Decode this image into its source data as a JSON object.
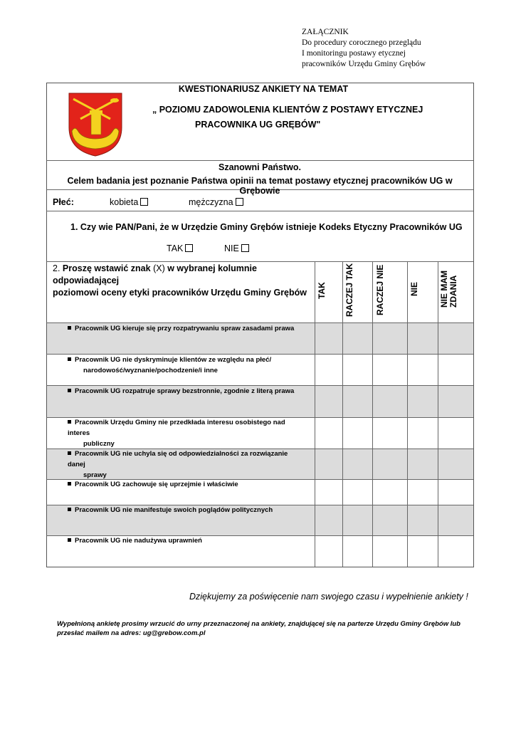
{
  "attachment": {
    "lines": [
      "ZAŁĄCZNIK",
      "Do procedury corocznego przeglądu",
      "I monitoringu postawy etycznej",
      "pracowników Urzędu Gminy Grębów"
    ]
  },
  "header": {
    "title1": "KWESTIONARIUSZ ANKIETY NA TEMAT",
    "title2": "„ POZIOMU ZADOWOLENIA KLIENTÓW Z POSTAWY ETYCZNEJ",
    "title3": "PRACOWNIKA UG GRĘBÓW\"",
    "crest_colors": {
      "field": "#e2231a",
      "charge": "#f4d21f"
    }
  },
  "intro": {
    "greeting": "Szanowni Państwo.",
    "text": "Celem badania jest poznanie Państwa opinii na temat postawy etycznej pracowników UG w Grębowie"
  },
  "gender": {
    "label": "Płeć:",
    "options": [
      "kobieta",
      "mężczyzna"
    ]
  },
  "q1": {
    "text": "1. Czy wie PAN/Pani, że w Urzędzie Gminy Grębów istnieje Kodeks Etyczny Pracowników UG",
    "options": [
      "TAK",
      "NIE"
    ]
  },
  "q2": {
    "num": "2.",
    "bold1": "Proszę wstawić znak",
    "x": "(X)",
    "bold2": "w wybranej kolumnie odpowiadającej",
    "line2": "poziomowi oceny etyki pracowników Urzędu Gminy Grębów",
    "columns": [
      "TAK",
      "RACZEJ TAK",
      "RACZEJ NIE",
      "NIE",
      "NIE MAM ZDANIA"
    ]
  },
  "items": [
    {
      "l1": "Pracownik UG kieruje się przy rozpatrywaniu spraw zasadami prawa",
      "l2": ""
    },
    {
      "l1": "Pracownik UG nie dyskryminuje klientów ze względu na płeć/",
      "l2": "narodowość/wyznanie/pochodzenie/i inne"
    },
    {
      "l1": "Pracownik UG rozpatruje sprawy bezstronnie, zgodnie z literą prawa",
      "l2": ""
    },
    {
      "l1": "Pracownik Urzędu Gminy nie przedkłada interesu osobistego nad interes",
      "l2": "publiczny"
    },
    {
      "l1": "Pracownik UG nie uchyla się od odpowiedzialności za rozwiązanie danej",
      "l2": "sprawy"
    },
    {
      "l1": "Pracownik UG zachowuje się uprzejmie i właściwie",
      "l2": ""
    },
    {
      "l1": "Pracownik UG nie manifestuje swoich poglądów politycznych",
      "l2": ""
    },
    {
      "l1": "Pracownik UG nie nadużywa uprawnień",
      "l2": ""
    }
  ],
  "footer": {
    "thanks": "Dziękujemy za poświęcenie nam swojego czasu i wypełnienie ankiety !",
    "note1": "Wypełnioną ankietę prosimy wrzucić do urny przeznaczonej na ankiety, znajdującej się na parterze Urzędu Gminy Grębów lub",
    "note2": "przesłać mailem na adres: ug@grebow.com.pl"
  }
}
